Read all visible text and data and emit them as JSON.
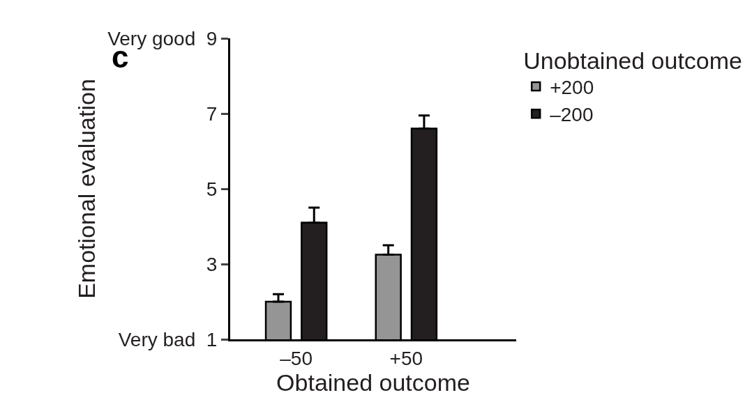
{
  "chart_data": {
    "type": "bar",
    "xlabel": "Obtained outcome",
    "ylabel": "Emotional evaluation",
    "legend_title": "Unobtained outcome",
    "annotations": [
      "c"
    ],
    "categories": [
      "–50",
      "+50"
    ],
    "series": [
      {
        "name": "+200",
        "color": "#959595",
        "values": [
          2.0,
          3.25
        ],
        "errors": [
          [
            2.0,
            2.2
          ],
          [
            3.25,
            3.5
          ]
        ]
      },
      {
        "name": "–200",
        "color": "#231f20",
        "values": [
          4.1,
          6.6
        ],
        "errors": [
          [
            4.1,
            4.5
          ],
          [
            6.6,
            6.95
          ]
        ]
      }
    ],
    "ylim": [
      1,
      9
    ],
    "yticks": [
      {
        "value": 1,
        "label": "Very bad  1"
      },
      3,
      5,
      7,
      {
        "value": 9,
        "label": "Very good  9"
      }
    ],
    "grid": false,
    "legend": "top right"
  }
}
